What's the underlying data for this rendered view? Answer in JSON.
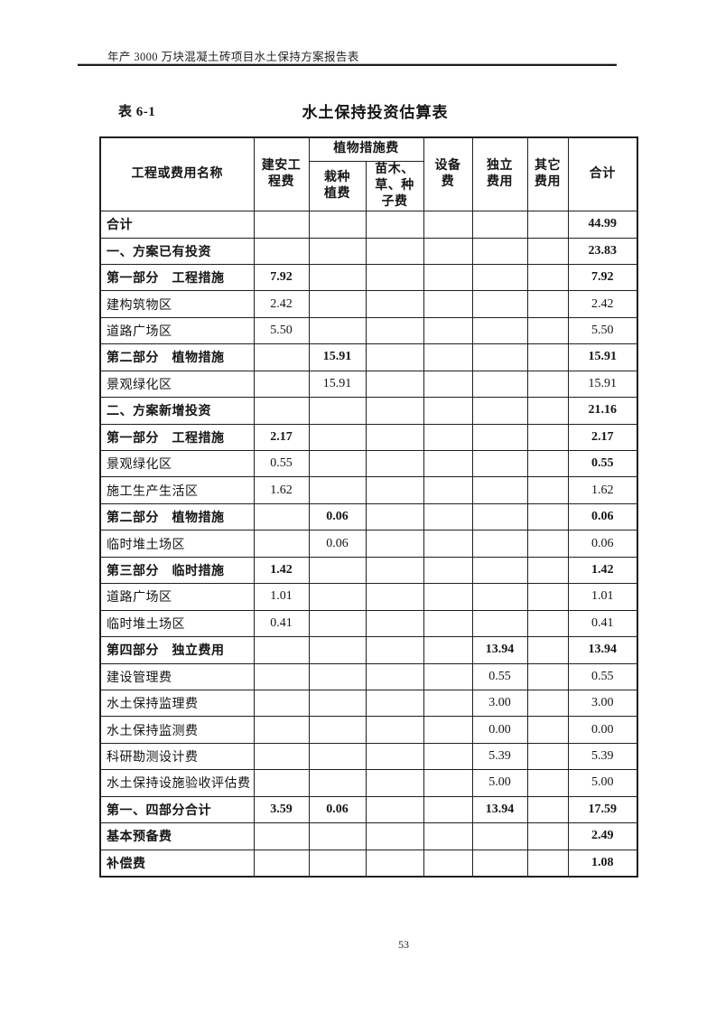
{
  "page": {
    "header_text": "年产 3000 万块混凝土砖项目水土保持方案报告表",
    "page_number": "53"
  },
  "table": {
    "label": "表 6-1",
    "title": "水土保持投资估算表",
    "columns": {
      "name": "工程或费用名称",
      "construction": "建安工\n程费",
      "plant_group": "植物措施费",
      "planting": "栽种\n植费",
      "seedling": "苗木、\n草、种\n子费",
      "equipment": "设备\n费",
      "independent": "独立\n费用",
      "other": "其它\n费用",
      "total": "合计"
    },
    "rows": [
      {
        "label": "合计",
        "bold": true,
        "values": [
          "",
          "",
          "",
          "",
          "",
          "",
          "44.99"
        ]
      },
      {
        "label": "一、方案已有投资",
        "bold": true,
        "values": [
          "",
          "",
          "",
          "",
          "",
          "",
          "23.83"
        ]
      },
      {
        "label": "第一部分　工程措施",
        "bold": true,
        "values": [
          "7.92",
          "",
          "",
          "",
          "",
          "",
          "7.92"
        ]
      },
      {
        "label": "建构筑物区",
        "bold": false,
        "values": [
          "2.42",
          "",
          "",
          "",
          "",
          "",
          "2.42"
        ]
      },
      {
        "label": "道路广场区",
        "bold": false,
        "values": [
          "5.50",
          "",
          "",
          "",
          "",
          "",
          "5.50"
        ]
      },
      {
        "label": "第二部分　植物措施",
        "bold": true,
        "values": [
          "",
          "15.91",
          "",
          "",
          "",
          "",
          "15.91"
        ]
      },
      {
        "label": "景观绿化区",
        "bold": false,
        "values": [
          "",
          "15.91",
          "",
          "",
          "",
          "",
          "15.91"
        ]
      },
      {
        "label": "二、方案新增投资",
        "bold": true,
        "values": [
          "",
          "",
          "",
          "",
          "",
          "",
          "21.16"
        ]
      },
      {
        "label": "第一部分　工程措施",
        "bold": true,
        "values": [
          "2.17",
          "",
          "",
          "",
          "",
          "",
          "2.17"
        ]
      },
      {
        "label": "景观绿化区",
        "bold": false,
        "total_bold": true,
        "values": [
          "0.55",
          "",
          "",
          "",
          "",
          "",
          "0.55"
        ]
      },
      {
        "label": "施工生产生活区",
        "bold": false,
        "values": [
          "1.62",
          "",
          "",
          "",
          "",
          "",
          "1.62"
        ]
      },
      {
        "label": "第二部分　植物措施",
        "bold": true,
        "values": [
          "",
          "0.06",
          "",
          "",
          "",
          "",
          "0.06"
        ]
      },
      {
        "label": "临时堆土场区",
        "bold": false,
        "values": [
          "",
          "0.06",
          "",
          "",
          "",
          "",
          "0.06"
        ]
      },
      {
        "label": "第三部分　临时措施",
        "bold": true,
        "values": [
          "1.42",
          "",
          "",
          "",
          "",
          "",
          "1.42"
        ]
      },
      {
        "label": "道路广场区",
        "bold": false,
        "values": [
          "1.01",
          "",
          "",
          "",
          "",
          "",
          "1.01"
        ]
      },
      {
        "label": "临时堆土场区",
        "bold": false,
        "values": [
          "0.41",
          "",
          "",
          "",
          "",
          "",
          "0.41"
        ]
      },
      {
        "label": "第四部分　独立费用",
        "bold": true,
        "values": [
          "",
          "",
          "",
          "",
          "13.94",
          "",
          "13.94"
        ]
      },
      {
        "label": "建设管理费",
        "bold": false,
        "values": [
          "",
          "",
          "",
          "",
          "0.55",
          "",
          "0.55"
        ]
      },
      {
        "label": "水土保持监理费",
        "bold": false,
        "values": [
          "",
          "",
          "",
          "",
          "3.00",
          "",
          "3.00"
        ]
      },
      {
        "label": "水土保持监测费",
        "bold": false,
        "values": [
          "",
          "",
          "",
          "",
          "0.00",
          "",
          "0.00"
        ]
      },
      {
        "label": "科研勘测设计费",
        "bold": false,
        "values": [
          "",
          "",
          "",
          "",
          "5.39",
          "",
          "5.39"
        ]
      },
      {
        "label": "水土保持设施验收评估费",
        "bold": false,
        "values": [
          "",
          "",
          "",
          "",
          "5.00",
          "",
          "5.00"
        ]
      },
      {
        "label": "第一、四部分合计",
        "bold": true,
        "values": [
          "3.59",
          "0.06",
          "",
          "",
          "13.94",
          "",
          "17.59"
        ]
      },
      {
        "label": "基本预备费",
        "bold": true,
        "values": [
          "",
          "",
          "",
          "",
          "",
          "",
          "2.49"
        ]
      },
      {
        "label": "补偿费",
        "bold": true,
        "values": [
          "",
          "",
          "",
          "",
          "",
          "",
          "1.08"
        ]
      }
    ]
  }
}
